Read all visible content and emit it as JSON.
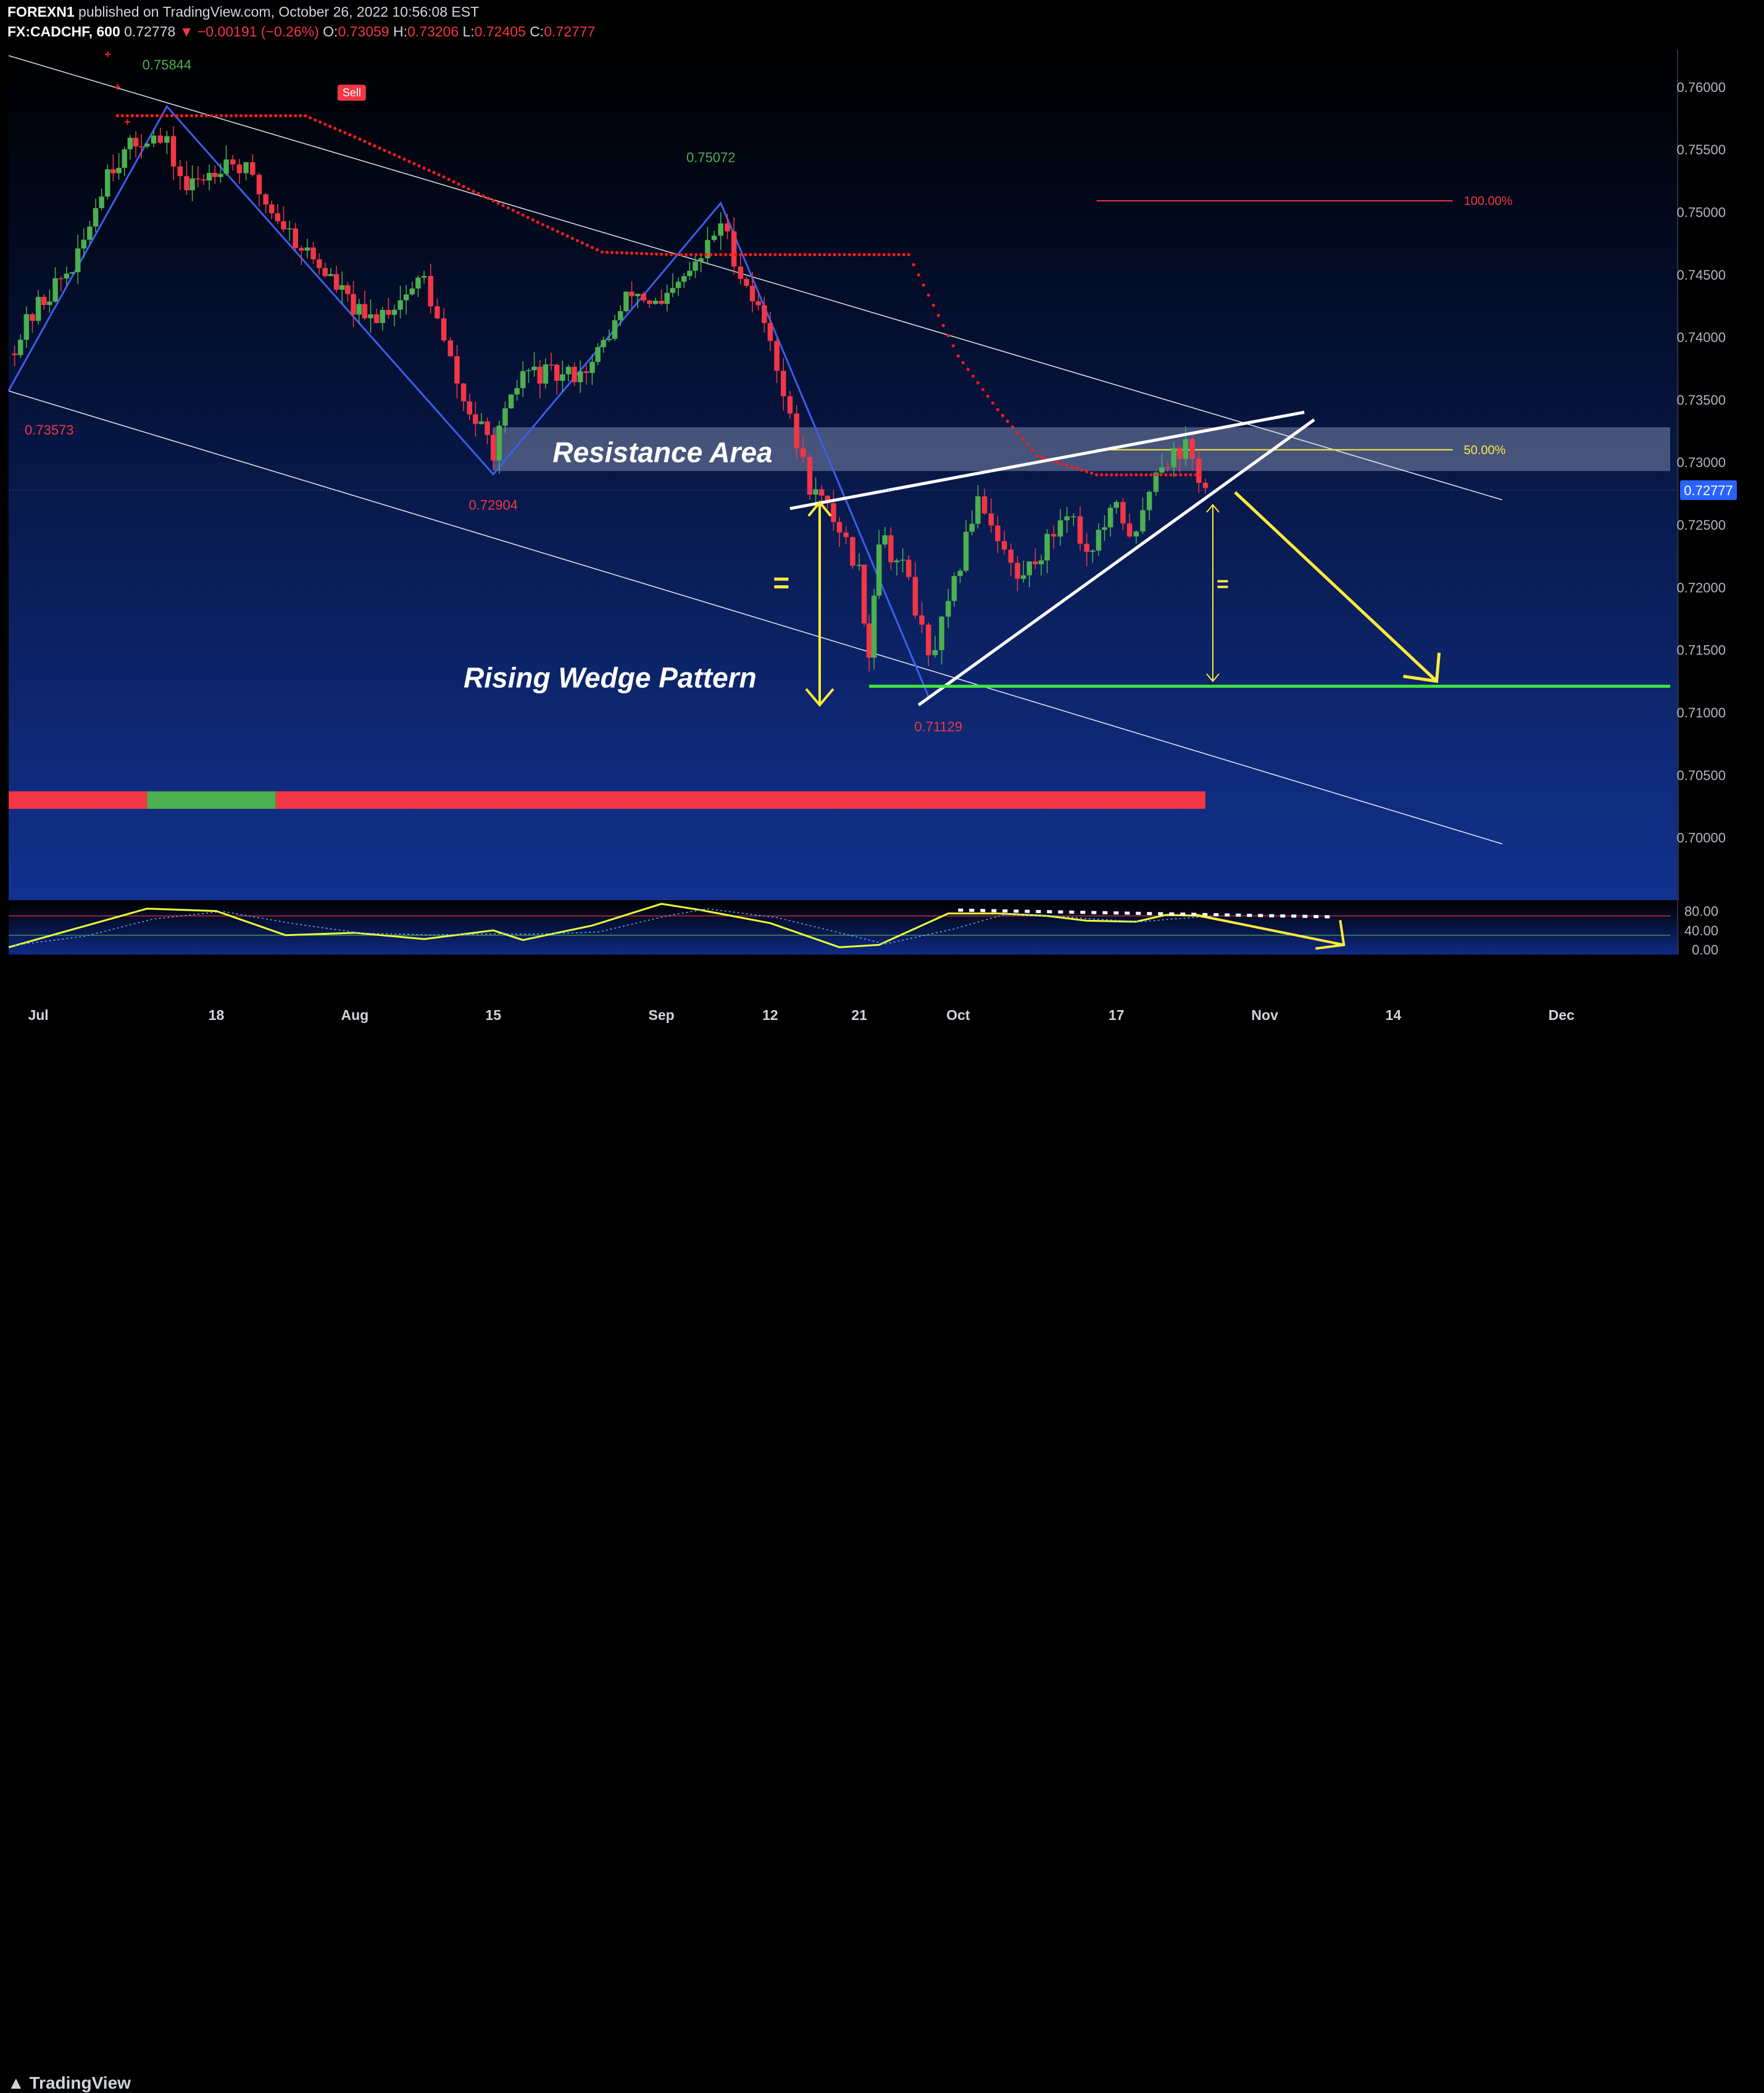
{
  "header": {
    "publisher": "FOREXN1",
    "published_text": "published on TradingView.com, October 26, 2022 10:56:08 EST",
    "symbol": "FX:CADCHF, 600",
    "last": "0.72778",
    "change": "▼ −0.00191 (−0.26%)",
    "o_label": "O:",
    "o_value": "0.73059",
    "h_label": "H:",
    "h_value": "0.73206",
    "l_label": "L:",
    "l_value": "0.72405",
    "c_label": "C:",
    "c_value": "0.72777"
  },
  "footer": {
    "brand": "TradingView",
    "logo_icon": "tradingview-logo-icon"
  },
  "colors": {
    "bull": "#4caf50",
    "bear": "#f23645",
    "channel": "#ffffff",
    "zigzag": "#3d5ee8",
    "supertrend": "#ff1a1a",
    "wedge": "#ffffff",
    "arrows": "#ffeb3b",
    "support": "#3fe03f",
    "resistance_zone": "#bcc6e6",
    "fib_100": "#f23645",
    "fib_50": "#ffeb3b",
    "price_tag": "#2962ff"
  },
  "chart_data": [
    {
      "type": "candlestick",
      "symbol": "FX:CADCHF",
      "timeframe": "600",
      "y_range": [
        0.695,
        0.763
      ],
      "price_ticks": [
        "0.76000",
        "0.75500",
        "0.75000",
        "0.74500",
        "0.74000",
        "0.73500",
        "0.73000",
        "0.72500",
        "0.72000",
        "0.71500",
        "0.71000",
        "0.70500",
        "0.70000"
      ],
      "time_ticks": [
        "Jul",
        "18",
        "Aug",
        "15",
        "Sep",
        "12",
        "21",
        "Oct",
        "17",
        "Nov",
        "14",
        "Dec"
      ],
      "last_price_tag": "0.72777",
      "swing_labels": [
        "0.75844",
        "0.75072",
        "0.73573",
        "0.72904",
        "0.71129"
      ],
      "zigzag": [
        {
          "date": "2022-06-27",
          "price": 0.73573
        },
        {
          "date": "2022-07-13",
          "price": 0.75844
        },
        {
          "date": "2022-08-15",
          "price": 0.72904
        },
        {
          "date": "2022-09-07",
          "price": 0.75072
        },
        {
          "date": "2022-09-28",
          "price": 0.71129
        }
      ],
      "closes": [
        {
          "date": "2022-06-27",
          "price": 0.7387
        },
        {
          "date": "2022-06-30",
          "price": 0.7425
        },
        {
          "date": "2022-07-04",
          "price": 0.7462
        },
        {
          "date": "2022-07-07",
          "price": 0.7535
        },
        {
          "date": "2022-07-11",
          "price": 0.7562
        },
        {
          "date": "2022-07-13",
          "price": 0.7552
        },
        {
          "date": "2022-07-15",
          "price": 0.7518
        },
        {
          "date": "2022-07-19",
          "price": 0.7543
        },
        {
          "date": "2022-07-21",
          "price": 0.7532
        },
        {
          "date": "2022-07-23",
          "price": 0.7508
        },
        {
          "date": "2022-07-26",
          "price": 0.7478
        },
        {
          "date": "2022-07-29",
          "price": 0.7452
        },
        {
          "date": "2022-08-02",
          "price": 0.7412
        },
        {
          "date": "2022-08-05",
          "price": 0.7427
        },
        {
          "date": "2022-08-08",
          "price": 0.7447
        },
        {
          "date": "2022-08-10",
          "price": 0.7395
        },
        {
          "date": "2022-08-12",
          "price": 0.7348
        },
        {
          "date": "2022-08-15",
          "price": 0.731
        },
        {
          "date": "2022-08-18",
          "price": 0.7372
        },
        {
          "date": "2022-08-22",
          "price": 0.7368
        },
        {
          "date": "2022-08-25",
          "price": 0.7378
        },
        {
          "date": "2022-08-29",
          "price": 0.7437
        },
        {
          "date": "2022-09-01",
          "price": 0.7423
        },
        {
          "date": "2022-09-05",
          "price": 0.7463
        },
        {
          "date": "2022-09-07",
          "price": 0.7492
        },
        {
          "date": "2022-09-09",
          "price": 0.7452
        },
        {
          "date": "2022-09-12",
          "price": 0.7402
        },
        {
          "date": "2022-09-14",
          "price": 0.7332
        },
        {
          "date": "2022-09-16",
          "price": 0.7282
        },
        {
          "date": "2022-09-19",
          "price": 0.7248
        },
        {
          "date": "2022-09-21",
          "price": 0.7212
        },
        {
          "date": "2022-09-22",
          "price": 0.7148
        },
        {
          "date": "2022-09-23",
          "price": 0.7242
        },
        {
          "date": "2022-09-26",
          "price": 0.7208
        },
        {
          "date": "2022-09-28",
          "price": 0.714
        },
        {
          "date": "2022-09-30",
          "price": 0.7182
        },
        {
          "date": "2022-10-03",
          "price": 0.7275
        },
        {
          "date": "2022-10-05",
          "price": 0.7242
        },
        {
          "date": "2022-10-07",
          "price": 0.7205
        },
        {
          "date": "2022-10-10",
          "price": 0.7235
        },
        {
          "date": "2022-10-12",
          "price": 0.7265
        },
        {
          "date": "2022-10-14",
          "price": 0.7228
        },
        {
          "date": "2022-10-17",
          "price": 0.7262
        },
        {
          "date": "2022-10-19",
          "price": 0.7238
        },
        {
          "date": "2022-10-21",
          "price": 0.7298
        },
        {
          "date": "2022-10-24",
          "price": 0.7312
        },
        {
          "date": "2022-10-26",
          "price": 0.72777
        }
      ],
      "supertrend": [
        {
          "date": "2022-07-08",
          "price": 0.7577
        },
        {
          "date": "2022-07-27",
          "price": 0.7577
        },
        {
          "date": "2022-08-01",
          "price": 0.756
        },
        {
          "date": "2022-08-10",
          "price": 0.7528
        },
        {
          "date": "2022-08-20",
          "price": 0.749
        },
        {
          "date": "2022-08-26",
          "price": 0.7468
        },
        {
          "date": "2022-09-02",
          "price": 0.7466
        },
        {
          "date": "2022-09-26",
          "price": 0.7466
        },
        {
          "date": "2022-10-01",
          "price": 0.7385
        },
        {
          "date": "2022-10-05",
          "price": 0.7342
        },
        {
          "date": "2022-10-09",
          "price": 0.7305
        },
        {
          "date": "2022-10-15",
          "price": 0.729
        },
        {
          "date": "2022-10-26",
          "price": 0.729
        }
      ],
      "channel": {
        "upper": [
          {
            "date": "2022-06-27",
            "price": 0.7625
          },
          {
            "date": "2022-11-25",
            "price": 0.727
          }
        ],
        "lower": [
          {
            "date": "2022-06-27",
            "price": 0.7357
          },
          {
            "date": "2022-11-25",
            "price": 0.6995
          }
        ]
      },
      "fibonacci": [
        {
          "level": "100.00%",
          "price": 0.7509
        },
        {
          "level": "50.00%",
          "price": 0.731
        }
      ],
      "annotations": {
        "resistance_area": "Resistance Area",
        "resistance_zone": [
          0.7293,
          0.7328
        ],
        "pattern": "Rising Wedge Pattern",
        "equal_sign_left": "=",
        "equal_sign_right": "=",
        "signal": "Sell",
        "support_level": 0.7121,
        "target": 0.7121
      },
      "trend_bar": [
        {
          "from": "2022-06-27",
          "to": "2022-07-11",
          "state": "bear"
        },
        {
          "from": "2022-07-11",
          "to": "2022-07-24",
          "state": "bull"
        },
        {
          "from": "2022-07-24",
          "to": "2022-10-26",
          "state": "bear"
        }
      ]
    },
    {
      "type": "line",
      "name": "oscillator",
      "y_range": [
        -10,
        100
      ],
      "y_ticks": [
        "80.00",
        "40.00",
        "0.00"
      ],
      "levels": [
        70,
        30
      ],
      "series": [
        {
          "values": [
            {
              "date": "2022-06-27",
              "v": 5
            },
            {
              "date": "2022-07-04",
              "v": 45
            },
            {
              "date": "2022-07-11",
              "v": 85
            },
            {
              "date": "2022-07-18",
              "v": 80
            },
            {
              "date": "2022-07-25",
              "v": 30
            },
            {
              "date": "2022-08-01",
              "v": 35
            },
            {
              "date": "2022-08-08",
              "v": 22
            },
            {
              "date": "2022-08-15",
              "v": 40
            },
            {
              "date": "2022-08-18",
              "v": 20
            },
            {
              "date": "2022-08-25",
              "v": 50
            },
            {
              "date": "2022-09-01",
              "v": 95
            },
            {
              "date": "2022-09-05",
              "v": 82
            },
            {
              "date": "2022-09-12",
              "v": 55
            },
            {
              "date": "2022-09-19",
              "v": 5
            },
            {
              "date": "2022-09-23",
              "v": 10
            },
            {
              "date": "2022-09-30",
              "v": 75
            },
            {
              "date": "2022-10-05",
              "v": 75
            },
            {
              "date": "2022-10-10",
              "v": 70
            },
            {
              "date": "2022-10-14",
              "v": 60
            },
            {
              "date": "2022-10-19",
              "v": 58
            },
            {
              "date": "2022-10-22",
              "v": 72
            },
            {
              "date": "2022-10-26",
              "v": 70
            }
          ]
        }
      ],
      "divergence_line": [
        {
          "date": "2022-10-01",
          "v": 82
        },
        {
          "date": "2022-11-08",
          "v": 68
        }
      ]
    }
  ]
}
